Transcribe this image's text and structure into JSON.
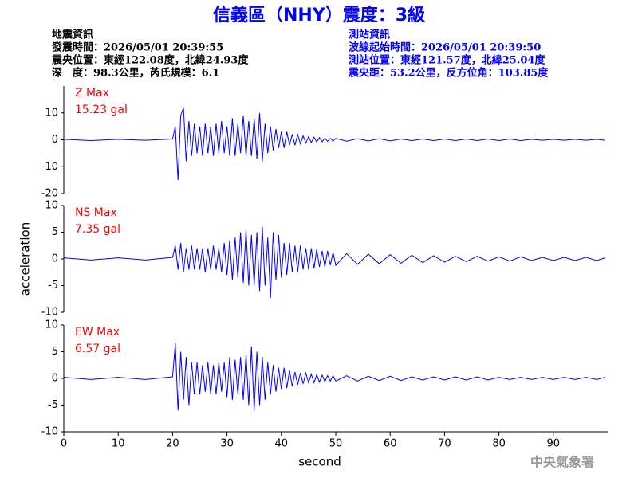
{
  "header": {
    "title": "信義區（NHY）震度：3級",
    "left": [
      "地震資訊",
      "發震時間：2026/05/01 20:39:55",
      "震央位置：東經122.08度，北緯24.93度",
      "深　度：98.3公里，芮氏規模：6.1"
    ],
    "right": [
      "測站資訊",
      "波線起始時間：2026/05/01 20:39:50",
      "測站位置：東經121.57度，北緯25.04度",
      "震央距：53.2公里，反方位角：103.85度"
    ]
  },
  "footer": "中央氣象署",
  "chart_data": [
    {
      "type": "line",
      "color": "#0000ff",
      "annotations": [
        "Z Max",
        "15.23 gal"
      ],
      "annotation_color": "#ff0000",
      "ylim": [
        -20,
        20
      ],
      "yticks": [
        -20,
        -10,
        0,
        10
      ],
      "xlim": [
        0,
        100
      ],
      "x": [
        0,
        5,
        10,
        15,
        20,
        20.5,
        21,
        21.5,
        22,
        22.5,
        23,
        23.5,
        24,
        24.5,
        25,
        25.5,
        26,
        26.5,
        27,
        27.5,
        28,
        28.5,
        29,
        29.5,
        30,
        30.5,
        31,
        31.5,
        32,
        32.5,
        33,
        33.5,
        34,
        34.5,
        35,
        35.5,
        36,
        36.5,
        37,
        37.5,
        38,
        38.5,
        39,
        39.5,
        40,
        40.5,
        41,
        41.5,
        42,
        42.5,
        43,
        43.5,
        44,
        44.5,
        45,
        45.5,
        46,
        46.5,
        47,
        47.5,
        48,
        48.5,
        49,
        49.5,
        50,
        52,
        54,
        56,
        58,
        60,
        62,
        64,
        66,
        68,
        70,
        72,
        74,
        76,
        78,
        80,
        82,
        84,
        86,
        88,
        90,
        92,
        94,
        96,
        98,
        99.5
      ],
      "values": [
        0.2,
        -0.3,
        0.2,
        -0.2,
        0.3,
        5,
        -15,
        9,
        12,
        -8,
        7,
        -6,
        6,
        -5,
        5,
        -6,
        6,
        -5,
        5,
        -6,
        6,
        -5,
        7,
        -5,
        5,
        -6,
        8,
        -6,
        6,
        -5,
        9,
        -6,
        7,
        -6,
        8,
        -7,
        10,
        -8,
        6,
        -5,
        5,
        -4,
        4,
        -3,
        3,
        -3,
        3,
        -2,
        2,
        -2,
        2,
        -1.5,
        1.5,
        -1.2,
        1.2,
        -1,
        1,
        -0.8,
        0.8,
        -0.7,
        0.6,
        -0.6,
        0.5,
        -0.5,
        0.5,
        -0.5,
        0.4,
        -0.4,
        0.4,
        -0.4,
        0.3,
        -0.3,
        0.3,
        -0.3,
        0.3,
        -0.3,
        0.3,
        -0.3,
        0.3,
        -0.3,
        0.3,
        -0.3,
        0.2,
        -0.2,
        0.2,
        -0.2,
        0.2,
        -0.2,
        0.2,
        -0.2
      ]
    },
    {
      "type": "line",
      "color": "#0000ff",
      "annotations": [
        "NS Max",
        "7.35 gal"
      ],
      "annotation_color": "#ff0000",
      "ylabel": "acceleration",
      "ylim": [
        -10,
        10
      ],
      "yticks": [
        -10,
        -5,
        0,
        5,
        10
      ],
      "xlim": [
        0,
        100
      ],
      "x": [
        0,
        5,
        10,
        15,
        20,
        20.5,
        21,
        21.5,
        22,
        22.5,
        23,
        23.5,
        24,
        24.5,
        25,
        25.5,
        26,
        26.5,
        27,
        27.5,
        28,
        28.5,
        29,
        29.5,
        30,
        30.5,
        31,
        31.5,
        32,
        32.5,
        33,
        33.5,
        34,
        34.5,
        35,
        35.5,
        36,
        36.5,
        37,
        37.5,
        38,
        38.5,
        39,
        39.5,
        40,
        40.5,
        41,
        41.5,
        42,
        42.5,
        43,
        43.5,
        44,
        44.5,
        45,
        45.5,
        46,
        46.5,
        47,
        47.5,
        48,
        48.5,
        49,
        49.5,
        50,
        52,
        54,
        56,
        58,
        60,
        62,
        64,
        66,
        68,
        70,
        72,
        74,
        76,
        78,
        80,
        82,
        84,
        86,
        88,
        90,
        92,
        94,
        96,
        98,
        99.5
      ],
      "values": [
        0.2,
        -0.2,
        0.2,
        -0.2,
        0.3,
        2.5,
        -2,
        3,
        -2.5,
        2,
        -2,
        2.5,
        -2,
        2,
        -2,
        2,
        -2.5,
        2,
        -2,
        2.5,
        -2,
        2,
        -2.5,
        3,
        -3,
        3.5,
        -4,
        4,
        -3.5,
        5,
        -4.5,
        5.5,
        -5,
        4.5,
        -5,
        5,
        -6,
        6,
        -5,
        4,
        -7.35,
        5,
        -4,
        4.5,
        -3.5,
        3,
        -3,
        3,
        -2.5,
        2.5,
        -2.5,
        2.5,
        -2,
        2,
        -2,
        2,
        -1.8,
        1.8,
        -1.5,
        1.5,
        -1.5,
        1.5,
        -1.2,
        1.2,
        -1.2,
        1,
        -1,
        0.9,
        -0.9,
        0.8,
        -0.8,
        0.7,
        -0.7,
        0.6,
        -0.6,
        0.5,
        -0.5,
        0.5,
        -0.4,
        0.4,
        -0.4,
        0.4,
        -0.3,
        0.3,
        -0.3,
        0.3,
        -0.3,
        0.3,
        -0.3,
        0.2
      ]
    },
    {
      "type": "line",
      "color": "#0000ff",
      "annotations": [
        "EW Max",
        "6.57 gal"
      ],
      "annotation_color": "#ff0000",
      "xlabel": "second",
      "ylim": [
        -10,
        10
      ],
      "yticks": [
        -10,
        -5,
        0,
        5,
        10
      ],
      "xlim": [
        0,
        100
      ],
      "xticks": [
        0,
        10,
        20,
        30,
        40,
        50,
        60,
        70,
        80,
        90
      ],
      "x": [
        0,
        5,
        10,
        15,
        20,
        20.5,
        21,
        21.5,
        22,
        22.5,
        23,
        23.5,
        24,
        24.5,
        25,
        25.5,
        26,
        26.5,
        27,
        27.5,
        28,
        28.5,
        29,
        29.5,
        30,
        30.5,
        31,
        31.5,
        32,
        32.5,
        33,
        33.5,
        34,
        34.5,
        35,
        35.5,
        36,
        36.5,
        37,
        37.5,
        38,
        38.5,
        39,
        39.5,
        40,
        40.5,
        41,
        41.5,
        42,
        42.5,
        43,
        43.5,
        44,
        44.5,
        45,
        45.5,
        46,
        46.5,
        47,
        47.5,
        48,
        48.5,
        49,
        49.5,
        50,
        52,
        54,
        56,
        58,
        60,
        62,
        64,
        66,
        68,
        70,
        72,
        74,
        76,
        78,
        80,
        82,
        84,
        86,
        88,
        90,
        92,
        94,
        96,
        98,
        99.5
      ],
      "values": [
        0.2,
        -0.2,
        0.2,
        -0.2,
        0.3,
        6.57,
        -6,
        5,
        -4,
        4,
        -5,
        3,
        -3,
        3,
        -3,
        2.5,
        -2.5,
        3,
        -3,
        2.5,
        -3,
        3,
        -2.5,
        3,
        -3.5,
        4,
        -4,
        3.5,
        -3,
        4,
        -4,
        4.5,
        -5,
        6,
        -6,
        5,
        -5,
        4,
        -4,
        3,
        -3,
        2.5,
        -2.5,
        2,
        -2,
        2,
        -1.8,
        1.5,
        -1.5,
        1.2,
        -1.2,
        1,
        -1,
        1,
        -0.8,
        0.8,
        -0.8,
        0.7,
        -0.7,
        0.6,
        -0.6,
        0.5,
        -0.5,
        0.5,
        -0.5,
        0.5,
        -0.5,
        0.4,
        -0.4,
        0.4,
        -0.4,
        0.3,
        -0.3,
        0.3,
        -0.3,
        0.3,
        -0.3,
        0.3,
        -0.3,
        0.2,
        -0.2,
        0.2,
        -0.2,
        0.2,
        -0.2,
        0.2,
        -0.2,
        0.2,
        -0.2,
        0.2
      ]
    }
  ]
}
